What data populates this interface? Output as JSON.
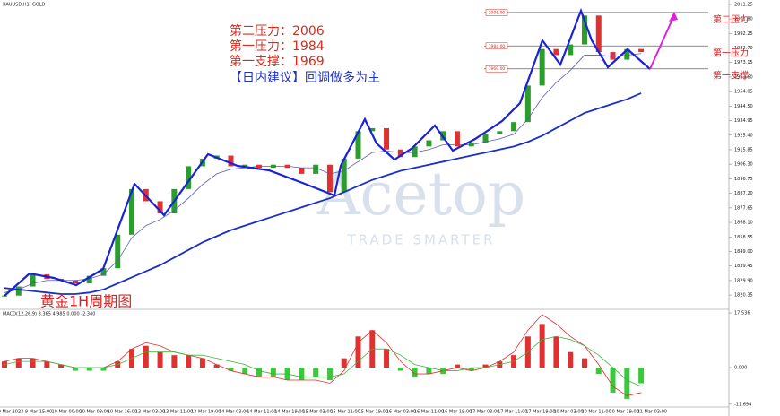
{
  "chart_data": [
    {
      "type": "candlestick",
      "title": "XAUUSD,H1: GOLD",
      "x": [
        0,
        1,
        2,
        3,
        4,
        5,
        6,
        7,
        8,
        9,
        10,
        11,
        12,
        13,
        14,
        15,
        16,
        17,
        18,
        19,
        20,
        21,
        22,
        23,
        24,
        25,
        26,
        27,
        28,
        29,
        30,
        31,
        32,
        33,
        34,
        35,
        36,
        37,
        38,
        39,
        40,
        41,
        42,
        43,
        44,
        45
      ],
      "series": [
        {
          "name": "Close",
          "color": "#2a9d2a",
          "down_color": "#e03030",
          "values": [
            1820,
            1826,
            1834,
            1831,
            1830,
            1828,
            1833,
            1838,
            1860,
            1890,
            1882,
            1874,
            1890,
            1905,
            1910,
            1912,
            1905,
            1906,
            1904,
            1906,
            1904,
            1900,
            1906,
            1888,
            1910,
            1928,
            1930,
            1916,
            1911,
            1918,
            1922,
            1928,
            1918,
            1920,
            1926,
            1928,
            1934,
            1958,
            1982,
            1978,
            1985,
            2004,
            1980,
            1975,
            1982,
            1980
          ]
        },
        {
          "name": "MA fast",
          "color": "#5a5ab8",
          "values": [
            1822,
            1824,
            1828,
            1830,
            1830,
            1830,
            1831,
            1834,
            1843,
            1858,
            1866,
            1870,
            1876,
            1884,
            1893,
            1900,
            1903,
            1904,
            1905,
            1905,
            1905,
            1904,
            1904,
            1900,
            1902,
            1908,
            1914,
            1915,
            1914,
            1914,
            1916,
            1919,
            1919,
            1919,
            1921,
            1923,
            1926,
            1936,
            1950,
            1960,
            1968,
            1978,
            1978,
            1977,
            1978,
            1979
          ]
        },
        {
          "name": "MA slow",
          "color": "#1a2fc8",
          "values": [
            1825,
            1824,
            1823,
            1822,
            1821,
            1821,
            1822,
            1824,
            1828,
            1832,
            1836,
            1840,
            1845,
            1850,
            1855,
            1859,
            1863,
            1866,
            1869,
            1872,
            1875,
            1878,
            1881,
            1884,
            1888,
            1892,
            1896,
            1899,
            1902,
            1904,
            1906,
            1908,
            1910,
            1912,
            1914,
            1916,
            1918,
            1921,
            1925,
            1930,
            1935,
            1940,
            1943,
            1946,
            1949,
            1953
          ]
        }
      ],
      "ylim": [
        1811,
        2014.2
      ],
      "yticks": [
        {
          "value": 2011.25,
          "label": "2011.25"
        },
        {
          "value": 2001.8,
          "label": "2001.80"
        },
        {
          "value": 1992.25,
          "label": "1992.25"
        },
        {
          "value": 1982.7,
          "label": "1982.70"
        },
        {
          "value": 1973.15,
          "label": "1973.15"
        },
        {
          "value": 1963.6,
          "label": "1963.60"
        },
        {
          "value": 1954.05,
          "label": "1954.05"
        },
        {
          "value": 1944.5,
          "label": "1944.50"
        },
        {
          "value": 1934.95,
          "label": "1934.95"
        },
        {
          "value": 1925.4,
          "label": "1925.40"
        },
        {
          "value": 1915.85,
          "label": "1915.85"
        },
        {
          "value": 1906.3,
          "label": "1906.30"
        },
        {
          "value": 1896.75,
          "label": "1896.75"
        },
        {
          "value": 1887.2,
          "label": "1887.20"
        },
        {
          "value": 1877.65,
          "label": "1877.65"
        },
        {
          "value": 1868.1,
          "label": "1868.10"
        },
        {
          "value": 1858.55,
          "label": "1858.55"
        },
        {
          "value": 1849,
          "label": "1849.00"
        },
        {
          "value": 1839.45,
          "label": "1839.45"
        },
        {
          "value": 1829.9,
          "label": "1829.90"
        },
        {
          "value": 1820.35,
          "label": "1820.35"
        }
      ],
      "levels": [
        {
          "value": 2006,
          "label": "第二压力",
          "tag": "2006.00"
        },
        {
          "value": 1984,
          "label": "第一压力",
          "tag": "1984.00"
        },
        {
          "value": 1969,
          "label": "第一支撑",
          "tag": "1969.00"
        }
      ],
      "annotations": [
        "第二压力：2006",
        "第一压力：1984",
        "第一支撑：1969",
        "【日内建议】回调做多为主",
        "黄金1H周期图"
      ],
      "watermark": [
        "Acetop",
        "TRADE SMARTER"
      ],
      "time_labels": [
        "9 Mar 2023",
        "9 Mar 15:00",
        "10 Mar 00:00",
        "10 Mar 08:00",
        "10 Mar 16:00",
        "13 Mar 03:00",
        "13 Mar 11:00",
        "13 Mar 19:00",
        "14 Mar 03:00",
        "14 Mar 11:00",
        "14 Mar 19:00",
        "15 Mar 03:00",
        "15 Mar 11:00",
        "15 Mar 19:00",
        "16 Mar 03:00",
        "16 Mar 11:00",
        "16 Mar 19:00",
        "17 Mar 03:00",
        "17 Mar 11:00",
        "17 Mar 19:00",
        "20 Mar 03:00",
        "20 Mar 11:00",
        "20 Mar 19:00",
        "21 Mar 03:00"
      ]
    },
    {
      "type": "macd",
      "title": "MACD(12,26,9) 3.365 4.985 0.000 -2.340",
      "series": [
        {
          "name": "Histogram",
          "color": "#e03030",
          "down_color": "#3cc83c",
          "values": [
            2,
            3,
            3,
            2,
            1,
            -1,
            -1,
            -1,
            2,
            6,
            7,
            5,
            4,
            4,
            3,
            1,
            -1,
            -2,
            -3,
            -3,
            -4,
            -4,
            -3,
            -4,
            3,
            10,
            12,
            6,
            -1,
            -3,
            -2,
            -2,
            1,
            -1,
            1,
            2,
            4,
            10,
            14,
            10,
            5,
            3,
            -2,
            -8,
            -10,
            -5
          ]
        },
        {
          "name": "MACD",
          "color": "#e03030",
          "values": [
            2,
            3,
            3,
            2,
            1,
            0,
            0,
            0,
            2,
            6,
            8,
            7,
            5,
            4,
            3,
            1,
            -1,
            -2,
            -3,
            -3,
            -4,
            -4,
            -4,
            -5,
            -1,
            8,
            12,
            8,
            2,
            -2,
            -2,
            -1,
            0,
            -1,
            0,
            2,
            5,
            12,
            17,
            14,
            10,
            7,
            1,
            -6,
            -9,
            -8
          ]
        },
        {
          "name": "Signal",
          "color": "#3cb43c",
          "values": [
            1,
            2,
            2,
            2,
            1,
            0,
            0,
            0,
            1,
            3,
            5,
            5,
            5,
            4,
            4,
            3,
            2,
            1,
            -1,
            -2,
            -2,
            -3,
            -3,
            -3,
            -2,
            2,
            6,
            6,
            4,
            1,
            0,
            -1,
            -1,
            0,
            0,
            1,
            2,
            5,
            9,
            10,
            9,
            7,
            4,
            0,
            -4,
            -6
          ]
        }
      ],
      "ylim": [
        -12.9,
        18.7
      ],
      "yticks": [
        {
          "value": 17.536,
          "label": "17.536"
        },
        {
          "value": 0,
          "label": "0.000"
        },
        {
          "value": -11.694,
          "label": "-11.694"
        }
      ]
    }
  ]
}
